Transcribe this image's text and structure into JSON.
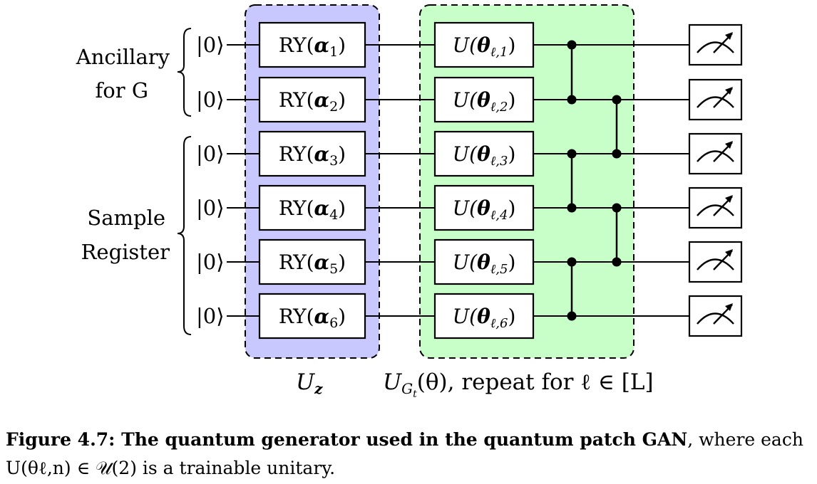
{
  "groups": {
    "ancillary": [
      "Ancillary",
      "for G"
    ],
    "sample": [
      "Sample",
      "Register"
    ]
  },
  "ket": "|0⟩",
  "ry_prefix": "RY(",
  "alpha_symbol": "α",
  "u_prefix": "U(",
  "theta_symbol": "θ",
  "theta_sub_prefix": "ℓ,",
  "close_paren": ")",
  "qubit_indices": [
    "1",
    "2",
    "3",
    "4",
    "5",
    "6"
  ],
  "cz_pairs": [
    [
      1,
      2
    ],
    [
      3,
      4
    ],
    [
      5,
      6
    ],
    [
      2,
      3
    ],
    [
      4,
      5
    ]
  ],
  "labels": {
    "uz_main": "U",
    "uz_sub": "z",
    "ug_main": "U",
    "ug_sub": "G",
    "ug_subsub": "t",
    "ug_arg": "(θ), repeat for ℓ ∈ [L]"
  },
  "colors": {
    "uz_box": "#c8c8ff",
    "ug_box": "#c8ffc8"
  },
  "caption": {
    "bold": "Figure 4.7: The quantum generator used in the quantum patch GAN",
    "rest": ", where each U(θℓ,n) ∈ 𝒰(2) is a trainable unitary."
  }
}
